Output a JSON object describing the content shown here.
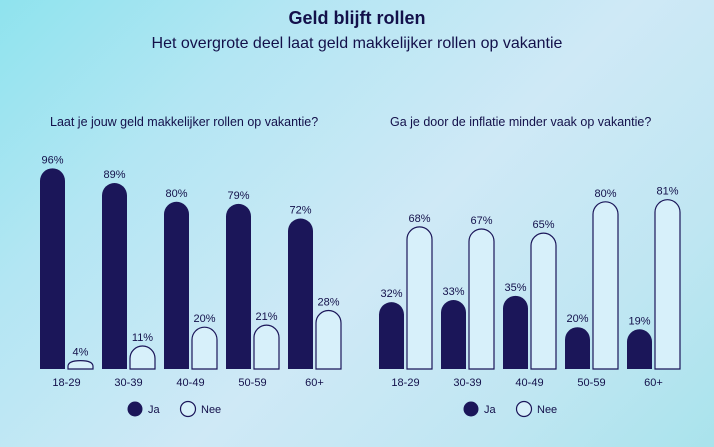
{
  "header": {
    "title": "Geld blijft rollen",
    "subtitle": "Het overgrote deel laat geld makkelijker rollen op vakantie"
  },
  "colors": {
    "ja": "#1b1659",
    "nee_fill": "#d7f0fa",
    "nee_stroke": "#1b1659"
  },
  "chart_data": [
    {
      "type": "bar",
      "title": "Laat je jouw geld makkelijker rollen op vakantie?",
      "categories": [
        "18-29",
        "30-39",
        "40-49",
        "50-59",
        "60+"
      ],
      "series": [
        {
          "name": "Ja",
          "values": [
            96,
            89,
            80,
            79,
            72
          ],
          "labels": [
            "96%",
            "89%",
            "80%",
            "79%",
            "72%"
          ]
        },
        {
          "name": "Nee",
          "values": [
            4,
            11,
            20,
            21,
            28
          ],
          "labels": [
            "4%",
            "11%",
            "20%",
            "21%",
            "28%"
          ]
        }
      ],
      "ylim": [
        0,
        100
      ],
      "legend": "bottom-center"
    },
    {
      "type": "bar",
      "title": "Ga je door de inflatie minder vaak op vakantie?",
      "categories": [
        "18-29",
        "30-39",
        "40-49",
        "50-59",
        "60+"
      ],
      "series": [
        {
          "name": "Ja",
          "values": [
            32,
            33,
            35,
            20,
            19
          ],
          "labels": [
            "32%",
            "33%",
            "35%",
            "20%",
            "19%"
          ]
        },
        {
          "name": "Nee",
          "values": [
            68,
            67,
            65,
            80,
            81
          ],
          "labels": [
            "68%",
            "67%",
            "65%",
            "80%",
            "81%"
          ]
        }
      ],
      "ylim": [
        0,
        100
      ],
      "legend": "bottom-center"
    }
  ]
}
